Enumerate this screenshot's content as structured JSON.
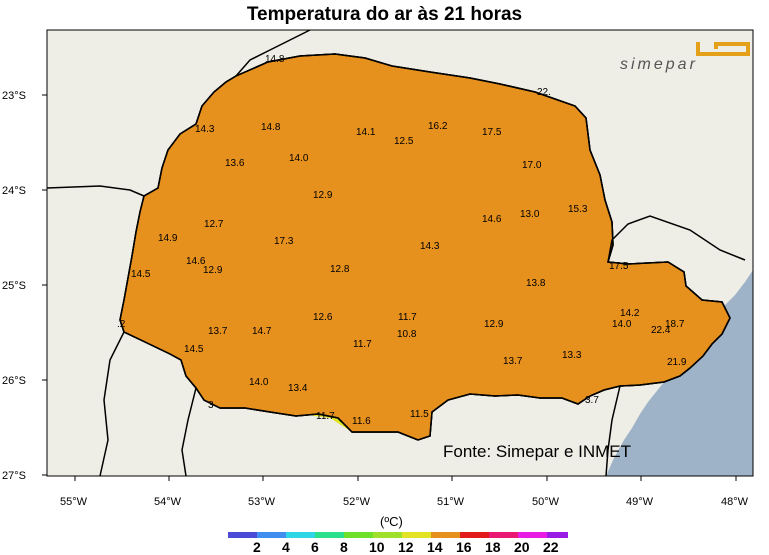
{
  "title": "Temperatura do ar às 21 horas",
  "source": "Fonte: Simepar e INMET",
  "logo_text": "simepar",
  "colors": {
    "sea": "#9fb3c8",
    "land_outside": "#efeee6",
    "t_10_12": "#6fe02a",
    "t_12_14": "#e3e325",
    "t_14_16": "#e6901e",
    "t_16_18": "#e31a1c",
    "t_18_20": "#ea1773",
    "t_20_22": "#e91be6",
    "logo": "#e5a01a"
  },
  "axes": {
    "lat_labels": [
      "23°S",
      "24°S",
      "25°S",
      "26°S",
      "27°S"
    ],
    "lon_labels": [
      "55°W",
      "54°W",
      "53°W",
      "52°W",
      "51°W",
      "50°W",
      "49°W",
      "48°W"
    ]
  },
  "legend": {
    "unit": "(ºC)",
    "ticks": [
      "2",
      "4",
      "6",
      "8",
      "10",
      "12",
      "14",
      "16",
      "18",
      "20",
      "22"
    ],
    "colors": [
      "#4b4bd8",
      "#3f8ef0",
      "#2fd6e6",
      "#2be08c",
      "#6fe02a",
      "#9ee02a",
      "#e3e325",
      "#e6901e",
      "#e31a1c",
      "#ea1773",
      "#e91be6",
      "#9b1be6"
    ]
  },
  "station_values": [
    "14.8",
    "14.3",
    "14.8",
    "14.1",
    "16.2",
    "17.5",
    "22.",
    "13.6",
    "14.0",
    "12.5",
    "17.0",
    "12.9",
    "15.3",
    "13.0",
    "14.6",
    "12.7",
    "14.9",
    "17.3",
    "14.3",
    "14.6",
    "12.9",
    "12.8",
    "14.5",
    "17.5",
    "13.8",
    "12.6",
    "11.7",
    "14.2",
    "14.0",
    "18.7",
    "22.4",
    "13.7",
    "14.7",
    "10.8",
    "12.9",
    "11.7",
    "14.5",
    "13.3",
    "13.7",
    "21.9",
    "14.0",
    "13.4",
    "3",
    "11.7",
    "11.6",
    "11.5",
    ".2",
    "3.7"
  ]
}
